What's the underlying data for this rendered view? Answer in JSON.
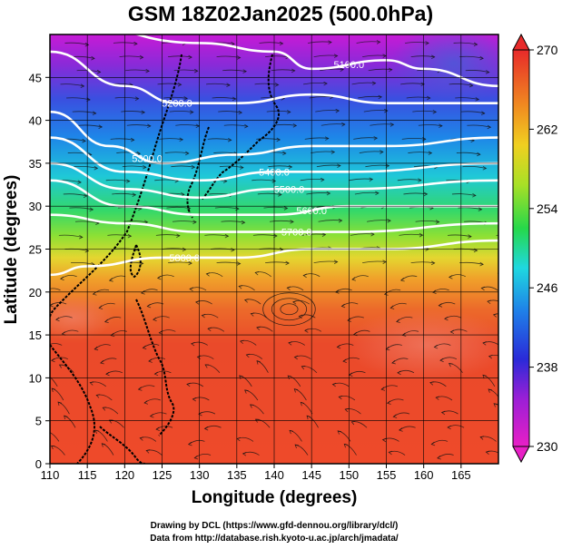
{
  "title": "GSM 18Z02Jan2025 (500.0hPa)",
  "xlabel": "Longitude (degrees)",
  "ylabel": "Latitude  (degrees)",
  "x_ticks": [
    "110",
    "115",
    "120",
    "125",
    "130",
    "135",
    "140",
    "145",
    "150",
    "155",
    "160",
    "165"
  ],
  "y_ticks": [
    "0",
    "5",
    "10",
    "15",
    "20",
    "25",
    "30",
    "35",
    "40",
    "45"
  ],
  "colorbar": {
    "ticks": [
      "230",
      "238",
      "246",
      "254",
      "262",
      "270"
    ],
    "min": 230,
    "max": 270
  },
  "contour_labels": [
    "5100.0",
    "5200.0",
    "5300.0",
    "5400.0",
    "5500.0",
    "5600.0",
    "5700.0",
    "5800.0"
  ],
  "credits": {
    "line1": "Drawing by DCL (https://www.gfd-dennou.org/library/dcl/)",
    "line2": "Data from http://database.rish.kyoto-u.ac.jp/arch/jmadata/"
  },
  "chart_data": {
    "type": "heatmap",
    "variable": "temperature (K) shaded, geopotential height contours, wind streamlines",
    "xlim": [
      110,
      170
    ],
    "ylim": [
      0,
      50
    ],
    "color_range": [
      230,
      270
    ],
    "grid": true,
    "contours": [
      {
        "label": "5100.0",
        "lat_at_lon": [
          [
            110,
            52
          ],
          [
            130,
            49
          ],
          [
            140,
            48
          ],
          [
            145,
            46
          ],
          [
            155,
            47
          ],
          [
            160,
            46
          ],
          [
            170,
            44
          ]
        ]
      },
      {
        "label": "5200.0",
        "lat_at_lon": [
          [
            110,
            48
          ],
          [
            120,
            44
          ],
          [
            127,
            42
          ],
          [
            135,
            42
          ],
          [
            145,
            43
          ],
          [
            155,
            42
          ],
          [
            170,
            42
          ]
        ]
      },
      {
        "label": "5300.0",
        "lat_at_lon": [
          [
            110,
            41
          ],
          [
            118,
            37
          ],
          [
            125,
            35
          ],
          [
            135,
            36
          ],
          [
            145,
            37
          ],
          [
            155,
            37
          ],
          [
            170,
            38
          ]
        ]
      },
      {
        "label": "5400.0",
        "lat_at_lon": [
          [
            110,
            38
          ],
          [
            120,
            34
          ],
          [
            130,
            33
          ],
          [
            140,
            34
          ],
          [
            150,
            34
          ],
          [
            170,
            35
          ]
        ]
      },
      {
        "label": "5500.0",
        "lat_at_lon": [
          [
            110,
            35
          ],
          [
            120,
            32
          ],
          [
            130,
            31
          ],
          [
            140,
            32
          ],
          [
            150,
            32
          ],
          [
            170,
            33
          ]
        ]
      },
      {
        "label": "5600.0",
        "lat_at_lon": [
          [
            110,
            33
          ],
          [
            120,
            30
          ],
          [
            130,
            29
          ],
          [
            140,
            29
          ],
          [
            150,
            30
          ],
          [
            170,
            30
          ]
        ]
      },
      {
        "label": "5700.0",
        "lat_at_lon": [
          [
            110,
            29
          ],
          [
            120,
            28
          ],
          [
            130,
            27
          ],
          [
            140,
            27
          ],
          [
            150,
            27
          ],
          [
            170,
            28
          ]
        ]
      },
      {
        "label": "5800.0",
        "lat_at_lon": [
          [
            110,
            22
          ],
          [
            115,
            23
          ],
          [
            125,
            24
          ],
          [
            135,
            24
          ],
          [
            145,
            25
          ],
          [
            155,
            25
          ],
          [
            170,
            26
          ]
        ]
      }
    ]
  }
}
